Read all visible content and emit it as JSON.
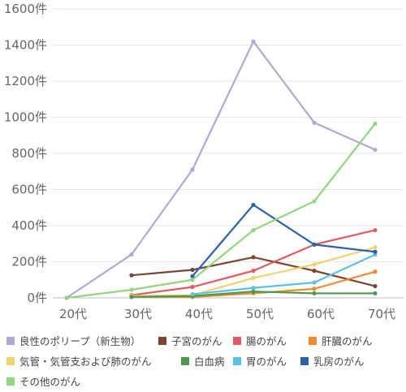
{
  "chart_data": {
    "type": "line",
    "title": "",
    "xlabel": "",
    "ylabel": "",
    "categories": [
      "20代",
      "30代",
      "40代",
      "50代",
      "60代",
      "70代"
    ],
    "ylim": [
      0,
      1600
    ],
    "yticks": [
      0,
      200,
      400,
      600,
      800,
      1000,
      1200,
      1400,
      1600
    ],
    "ytick_labels": [
      "0件",
      "200件",
      "400件",
      "600件",
      "800件",
      "1000件",
      "1200件",
      "1400件",
      "1600件"
    ],
    "grid": "horizontal",
    "legend_position": "bottom",
    "series": [
      {
        "name": "良性のポリープ（新生物）",
        "color": "#b3a6d8",
        "values": [
          0,
          240,
          710,
          1420,
          970,
          820
        ]
      },
      {
        "name": "子宮のがん",
        "color": "#7a4430",
        "values": [
          null,
          125,
          155,
          225,
          150,
          65
        ]
      },
      {
        "name": "腸のがん",
        "color": "#e05a5e",
        "values": [
          null,
          15,
          60,
          150,
          295,
          375
        ]
      },
      {
        "name": "肝臓のがん",
        "color": "#f08a30",
        "values": [
          null,
          5,
          5,
          25,
          50,
          145
        ]
      },
      {
        "name": "気管・気管支および肺のがん",
        "color": "#f1d26e",
        "values": [
          null,
          10,
          15,
          110,
          185,
          280
        ]
      },
      {
        "name": "白血病",
        "color": "#4a9a4a",
        "values": [
          null,
          5,
          10,
          35,
          25,
          25
        ]
      },
      {
        "name": "胃のがん",
        "color": "#5bc0e8",
        "values": [
          null,
          null,
          20,
          55,
          85,
          240
        ]
      },
      {
        "name": "乳房のがん",
        "color": "#2e62a8",
        "values": [
          null,
          null,
          120,
          515,
          295,
          255
        ]
      },
      {
        "name": "その他のがん",
        "color": "#8fd67e",
        "values": [
          0,
          45,
          100,
          375,
          535,
          965
        ]
      }
    ]
  }
}
